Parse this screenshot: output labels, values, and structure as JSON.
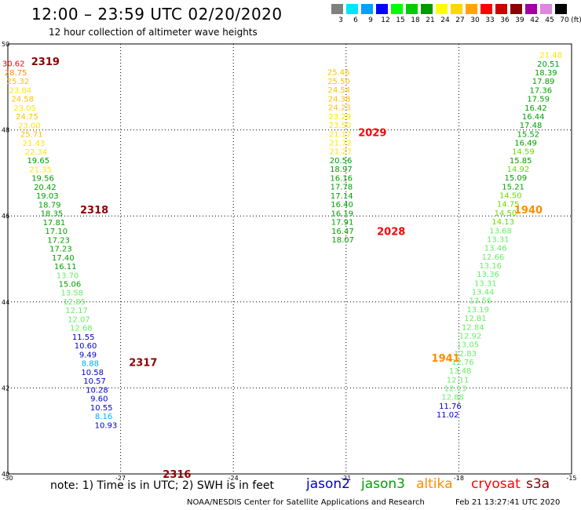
{
  "header": {
    "title": "12:00 – 23:59 UTC 02/20/2020",
    "subtitle": "12 hour collection of altimeter wave heights"
  },
  "colors": {
    "red": "#ff0000",
    "darkred": "#8b0000",
    "orange": "#ff8c00",
    "gold": "#ffc000",
    "yellow": "#ffe600",
    "lime": "#66dd00",
    "green": "#00a000",
    "lightgreen": "#66ee66",
    "blue": "#0000cc",
    "skyblue": "#00aaff"
  },
  "color_scale": {
    "unit": "(ft)",
    "swatches": [
      {
        "label": "3",
        "color": "#808080"
      },
      {
        "label": "6",
        "color": "#00e5ff"
      },
      {
        "label": "9",
        "color": "#00a0ff"
      },
      {
        "label": "12",
        "color": "#0000ff"
      },
      {
        "label": "15",
        "color": "#00ff00"
      },
      {
        "label": "18",
        "color": "#00cc00"
      },
      {
        "label": "21",
        "color": "#009900"
      },
      {
        "label": "24",
        "color": "#ffff00"
      },
      {
        "label": "27",
        "color": "#ffd700"
      },
      {
        "label": "30",
        "color": "#ffa500"
      },
      {
        "label": "33",
        "color": "#ff0000"
      },
      {
        "label": "36",
        "color": "#cc0000"
      },
      {
        "label": "39",
        "color": "#8b0000"
      },
      {
        "label": "42",
        "color": "#a000a0"
      },
      {
        "label": "45",
        "color": "#dd88dd"
      },
      {
        "label": "70",
        "color": "#000000"
      }
    ]
  },
  "note": {
    "text": "note:  1) Time is in UTC;  2) SWH is in feet",
    "satellites": [
      {
        "label": "jason2",
        "color": "#0000cc"
      },
      {
        "label": "jason3",
        "color": "#00a000"
      },
      {
        "label": "altika",
        "color": "#ff8c00"
      },
      {
        "label": "cryosat",
        "color": "#ff0000"
      },
      {
        "label": "s3a",
        "color": "#8b0000"
      }
    ]
  },
  "footer": {
    "credit": "NOAA/NESDIS Center for Satellite Applications and Research",
    "timestamp": "Feb 21 13:27:41 UTC 2020"
  },
  "chart_data": {
    "type": "scatter",
    "xlim": [
      -30,
      -15
    ],
    "ylim": [
      40,
      50
    ],
    "x_ticks": [
      -30,
      -27,
      -24,
      -21,
      -18,
      -15
    ],
    "y_ticks": [
      40,
      42,
      44,
      46,
      48,
      50
    ],
    "grid": true,
    "tracks": [
      {
        "name": "track-west",
        "start": [
          -29.85,
          49.55
        ],
        "step": [
          0.06,
          -0.205
        ],
        "labels": [
          {
            "v": "30.62",
            "c": "red"
          },
          {
            "v": "28.75",
            "c": "orange"
          },
          {
            "v": "25.32",
            "c": "gold"
          },
          {
            "v": "23.84",
            "c": "yellow"
          },
          {
            "v": "24.58",
            "c": "gold"
          },
          {
            "v": "23.05",
            "c": "yellow"
          },
          {
            "v": "24.75",
            "c": "gold"
          },
          {
            "v": "23.00",
            "c": "yellow"
          },
          {
            "v": "25.71",
            "c": "gold"
          },
          {
            "v": "21.43",
            "c": "yellow"
          },
          {
            "v": "22.34",
            "c": "yellow"
          },
          {
            "v": "19.65",
            "c": "green"
          },
          {
            "v": "21.35",
            "c": "yellow"
          },
          {
            "v": "19.56",
            "c": "green"
          },
          {
            "v": "20.42",
            "c": "green"
          },
          {
            "v": "19.03",
            "c": "green"
          },
          {
            "v": "18.79",
            "c": "green"
          },
          {
            "v": "18.35",
            "c": "green"
          },
          {
            "v": "17.81",
            "c": "green"
          },
          {
            "v": "17.10",
            "c": "green"
          },
          {
            "v": "17.23",
            "c": "green"
          },
          {
            "v": "17.23",
            "c": "green"
          },
          {
            "v": "17.40",
            "c": "green"
          },
          {
            "v": "16.11",
            "c": "green"
          },
          {
            "v": "13.70",
            "c": "lightgreen"
          },
          {
            "v": "15.06",
            "c": "green"
          },
          {
            "v": "13.58",
            "c": "lightgreen"
          },
          {
            "v": "12.85",
            "c": "lightgreen"
          },
          {
            "v": "12.17",
            "c": "lightgreen"
          },
          {
            "v": "12.07",
            "c": "lightgreen"
          },
          {
            "v": "12.68",
            "c": "lightgreen"
          },
          {
            "v": "11.55",
            "c": "blue"
          },
          {
            "v": "10.60",
            "c": "blue"
          },
          {
            "v": "9.49",
            "c": "blue"
          },
          {
            "v": "8.88",
            "c": "skyblue"
          },
          {
            "v": "10.58",
            "c": "blue"
          },
          {
            "v": "10.57",
            "c": "blue"
          },
          {
            "v": "10.28",
            "c": "blue"
          },
          {
            "v": "9.60",
            "c": "blue"
          },
          {
            "v": "10.55",
            "c": "blue"
          },
          {
            "v": "8.16",
            "c": "skyblue"
          },
          {
            "v": "10.93",
            "c": "blue"
          }
        ]
      },
      {
        "name": "track-mid",
        "start": [
          -21.2,
          49.35
        ],
        "step": [
          0.006,
          -0.205
        ],
        "labels": [
          {
            "v": "25.46",
            "c": "gold"
          },
          {
            "v": "25.50",
            "c": "gold"
          },
          {
            "v": "24.54",
            "c": "gold"
          },
          {
            "v": "24.38",
            "c": "gold"
          },
          {
            "v": "24.23",
            "c": "gold"
          },
          {
            "v": "23.29",
            "c": "yellow"
          },
          {
            "v": "23.50",
            "c": "yellow"
          },
          {
            "v": "21.17",
            "c": "yellow"
          },
          {
            "v": "21.72",
            "c": "yellow"
          },
          {
            "v": "21.27",
            "c": "yellow"
          },
          {
            "v": "20.56",
            "c": "green"
          },
          {
            "v": "18.97",
            "c": "green"
          },
          {
            "v": "16.16",
            "c": "green"
          },
          {
            "v": "17.78",
            "c": "green"
          },
          {
            "v": "17.14",
            "c": "green"
          },
          {
            "v": "16.40",
            "c": "green"
          },
          {
            "v": "16.19",
            "c": "green"
          },
          {
            "v": "17.91",
            "c": "green"
          },
          {
            "v": "16.47",
            "c": "green"
          },
          {
            "v": "18.07",
            "c": "green"
          }
        ]
      },
      {
        "name": "track-east",
        "start": [
          -15.55,
          49.75
        ],
        "step": [
          -0.067,
          -0.204
        ],
        "labels": [
          {
            "v": "21.48",
            "c": "yellow"
          },
          {
            "v": "20.51",
            "c": "green"
          },
          {
            "v": "18.39",
            "c": "green"
          },
          {
            "v": "17.89",
            "c": "green"
          },
          {
            "v": "17.36",
            "c": "green"
          },
          {
            "v": "17.59",
            "c": "green"
          },
          {
            "v": "16.42",
            "c": "green"
          },
          {
            "v": "16.44",
            "c": "green"
          },
          {
            "v": "17.48",
            "c": "green"
          },
          {
            "v": "15.52",
            "c": "green"
          },
          {
            "v": "16.49",
            "c": "green"
          },
          {
            "v": "14.59",
            "c": "lime"
          },
          {
            "v": "15.85",
            "c": "green"
          },
          {
            "v": "14.92",
            "c": "lime"
          },
          {
            "v": "15.09",
            "c": "green"
          },
          {
            "v": "15.21",
            "c": "green"
          },
          {
            "v": "14.50",
            "c": "lime"
          },
          {
            "v": "14.75",
            "c": "lime"
          },
          {
            "v": "14.50",
            "c": "lime"
          },
          {
            "v": "14.13",
            "c": "lime"
          },
          {
            "v": "13.68",
            "c": "lightgreen"
          },
          {
            "v": "13.31",
            "c": "lightgreen"
          },
          {
            "v": "13.46",
            "c": "lightgreen"
          },
          {
            "v": "12.66",
            "c": "lightgreen"
          },
          {
            "v": "13.16",
            "c": "lightgreen"
          },
          {
            "v": "13.36",
            "c": "lightgreen"
          },
          {
            "v": "13.31",
            "c": "lightgreen"
          },
          {
            "v": "13.44",
            "c": "lightgreen"
          },
          {
            "v": "13.56",
            "c": "lightgreen"
          },
          {
            "v": "13.19",
            "c": "lightgreen"
          },
          {
            "v": "12.81",
            "c": "lightgreen"
          },
          {
            "v": "12.84",
            "c": "lightgreen"
          },
          {
            "v": "12.92",
            "c": "lightgreen"
          },
          {
            "v": "13.05",
            "c": "lightgreen"
          },
          {
            "v": "12.83",
            "c": "lightgreen"
          },
          {
            "v": "12.76",
            "c": "lightgreen"
          },
          {
            "v": "13.48",
            "c": "lightgreen"
          },
          {
            "v": "12.11",
            "c": "lightgreen"
          },
          {
            "v": "12.13",
            "c": "lightgreen"
          },
          {
            "v": "12.88",
            "c": "lightgreen"
          },
          {
            "v": "11.76",
            "c": "blue"
          },
          {
            "v": "11.02",
            "c": "blue"
          }
        ]
      }
    ],
    "time_labels": [
      {
        "t": "2319",
        "x": -29.0,
        "y": 49.6,
        "c": "darkred"
      },
      {
        "t": "2318",
        "x": -27.7,
        "y": 46.15,
        "c": "darkred"
      },
      {
        "t": "2317",
        "x": -26.4,
        "y": 42.6,
        "c": "darkred"
      },
      {
        "t": "2316",
        "x": -25.5,
        "y": 40.0,
        "c": "darkred"
      },
      {
        "t": "2029",
        "x": -20.3,
        "y": 47.95,
        "c": "red"
      },
      {
        "t": "2028",
        "x": -19.8,
        "y": 45.65,
        "c": "red"
      },
      {
        "t": "1940",
        "x": -16.15,
        "y": 46.15,
        "c": "orange"
      },
      {
        "t": "1941",
        "x": -18.35,
        "y": 42.7,
        "c": "orange"
      }
    ]
  }
}
